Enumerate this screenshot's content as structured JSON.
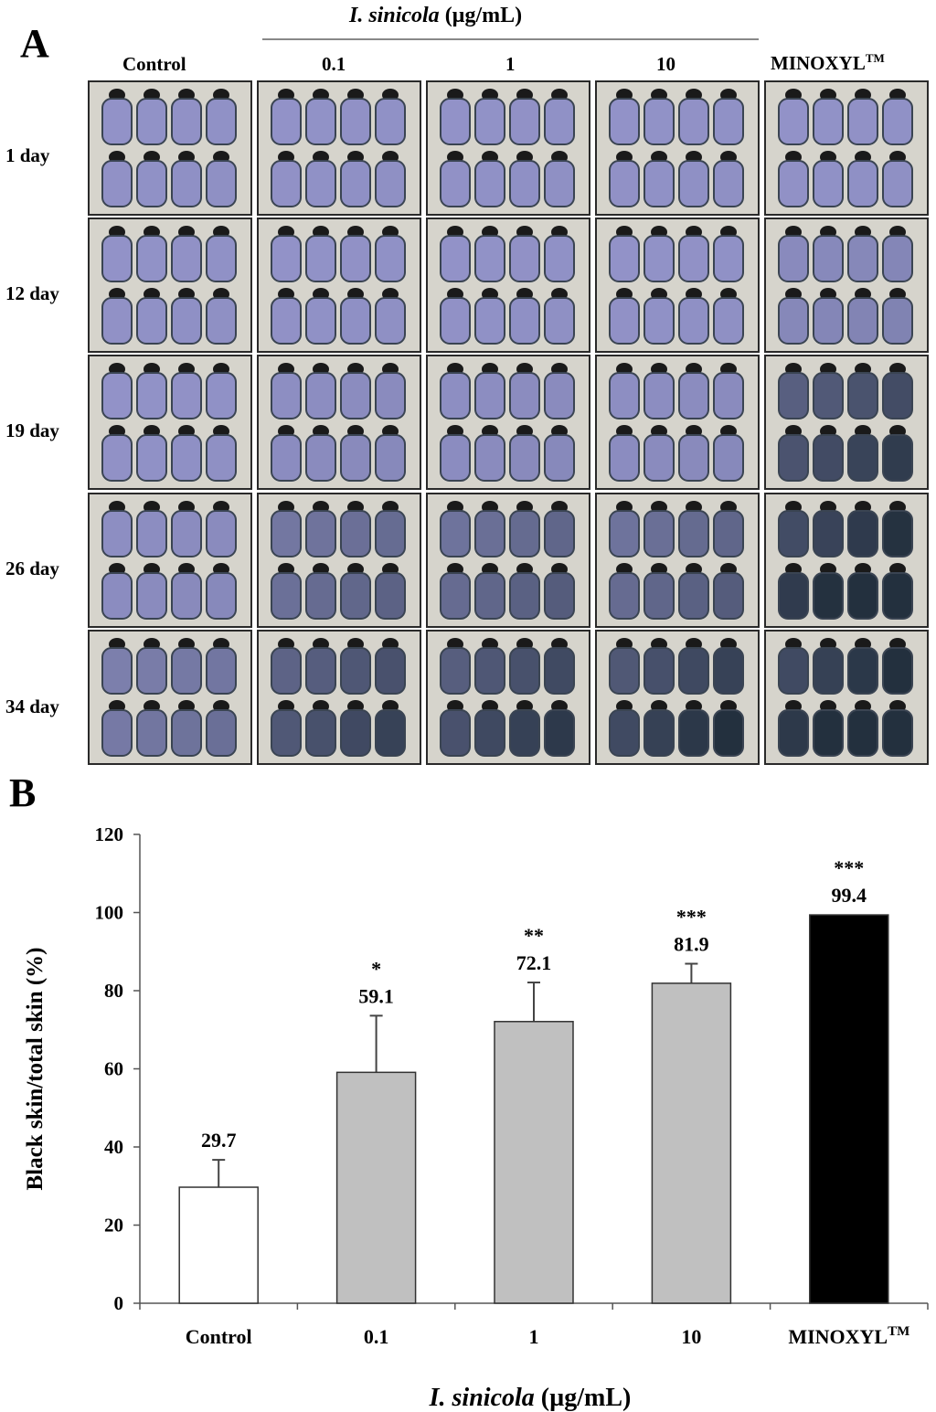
{
  "panel_a": {
    "letter": "A",
    "treatment_label_italic": "I. sinicola",
    "treatment_label_unit": " (µg/mL)",
    "groups": [
      "Control",
      "0.1",
      "1",
      "10",
      "MINOXYL"
    ],
    "trademark": "TM",
    "days": [
      "1 day",
      "12 day",
      "19 day",
      "26 day",
      "34 day"
    ],
    "darkness": [
      [
        0.05,
        0.05,
        0.05,
        0.05,
        0.05
      ],
      [
        0.05,
        0.05,
        0.05,
        0.05,
        0.15
      ],
      [
        0.05,
        0.1,
        0.1,
        0.1,
        0.7
      ],
      [
        0.1,
        0.4,
        0.45,
        0.45,
        0.95
      ],
      [
        0.3,
        0.65,
        0.72,
        0.8,
        0.98
      ]
    ]
  },
  "panel_b": {
    "letter": "B"
  },
  "chart_data": {
    "type": "bar",
    "categories": [
      "Control",
      "0.1",
      "1",
      "10",
      "MINOXYL"
    ],
    "category_superscripts": [
      "",
      "",
      "",
      "",
      "TM"
    ],
    "values": [
      29.7,
      59.1,
      72.1,
      81.9,
      99.4
    ],
    "value_labels": [
      "29.7",
      "59.1",
      "72.1",
      "81.9",
      "99.4"
    ],
    "error": [
      7.0,
      14.5,
      10.0,
      5.0,
      0
    ],
    "significance": [
      "",
      "*",
      "**",
      "***",
      "***"
    ],
    "bar_colors": [
      "#ffffff",
      "#c0c0c0",
      "#c0c0c0",
      "#c0c0c0",
      "#000000"
    ],
    "ylabel": "Black skin/total skin (%)",
    "xlabel_italic": "I. sinicola",
    "xlabel_unit": " (µg/mL)",
    "ylim": [
      0,
      120
    ],
    "yticks": [
      0,
      20,
      40,
      60,
      80,
      100,
      120
    ],
    "grid": false
  }
}
